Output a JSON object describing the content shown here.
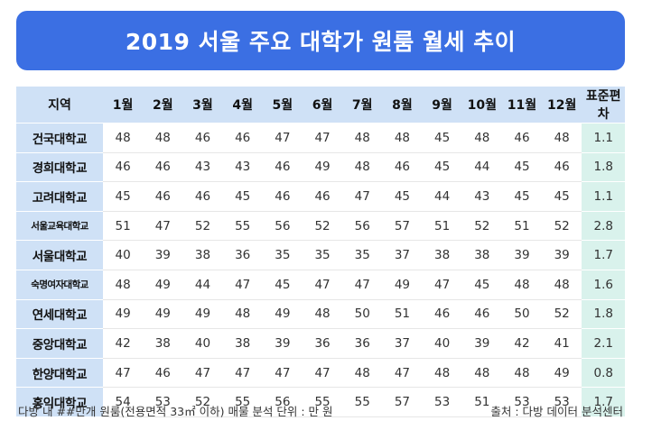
{
  "chart_data": {
    "type": "table",
    "title": "2019 서울 주요 대학가 원룸 월세 추이",
    "columns": [
      "지역",
      "1월",
      "2월",
      "3월",
      "4월",
      "5월",
      "6월",
      "7월",
      "8월",
      "9월",
      "10월",
      "11월",
      "12월",
      "표준편차"
    ],
    "rows": [
      {
        "name": "건국대학교",
        "values": [
          "48",
          "48",
          "46",
          "46",
          "47",
          "47",
          "48",
          "48",
          "45",
          "48",
          "46",
          "48",
          "1.1"
        ]
      },
      {
        "name": "경희대학교",
        "values": [
          "46",
          "46",
          "43",
          "43",
          "46",
          "49",
          "48",
          "46",
          "45",
          "44",
          "45",
          "46",
          "1.8"
        ]
      },
      {
        "name": "고려대학교",
        "values": [
          "45",
          "46",
          "46",
          "45",
          "46",
          "46",
          "47",
          "45",
          "44",
          "43",
          "45",
          "45",
          "1.1"
        ]
      },
      {
        "name": "서울교육대학교",
        "values": [
          "51",
          "47",
          "52",
          "55",
          "56",
          "52",
          "56",
          "57",
          "51",
          "52",
          "51",
          "52",
          "2.8"
        ]
      },
      {
        "name": "서울대학교",
        "values": [
          "40",
          "39",
          "38",
          "36",
          "35",
          "35",
          "35",
          "37",
          "38",
          "38",
          "39",
          "39",
          "1.7"
        ]
      },
      {
        "name": "숙명여자대학교",
        "values": [
          "48",
          "49",
          "44",
          "47",
          "45",
          "47",
          "47",
          "49",
          "47",
          "45",
          "48",
          "48",
          "1.6"
        ]
      },
      {
        "name": "연세대학교",
        "values": [
          "49",
          "49",
          "49",
          "48",
          "49",
          "48",
          "50",
          "51",
          "46",
          "46",
          "50",
          "52",
          "1.8"
        ]
      },
      {
        "name": "중앙대학교",
        "values": [
          "42",
          "38",
          "40",
          "38",
          "39",
          "36",
          "36",
          "37",
          "40",
          "39",
          "42",
          "41",
          "2.1"
        ]
      },
      {
        "name": "한양대학교",
        "values": [
          "47",
          "46",
          "47",
          "47",
          "47",
          "47",
          "48",
          "47",
          "48",
          "48",
          "48",
          "49",
          "0.8"
        ]
      },
      {
        "name": "홍익대학교",
        "values": [
          "54",
          "53",
          "52",
          "55",
          "56",
          "55",
          "55",
          "57",
          "53",
          "51",
          "53",
          "53",
          "1.7"
        ]
      }
    ],
    "footnote": "다방 내 ##만개 원룸(전용면적 33㎡ 이하) 매물 분석    단위 : 만 원",
    "source": "출처 : 다방 데이터 분석센터"
  },
  "colors": {
    "banner": "#3b6fe3",
    "header_bg": "#cfe1f6",
    "std_bg": "#d9f2ec"
  }
}
